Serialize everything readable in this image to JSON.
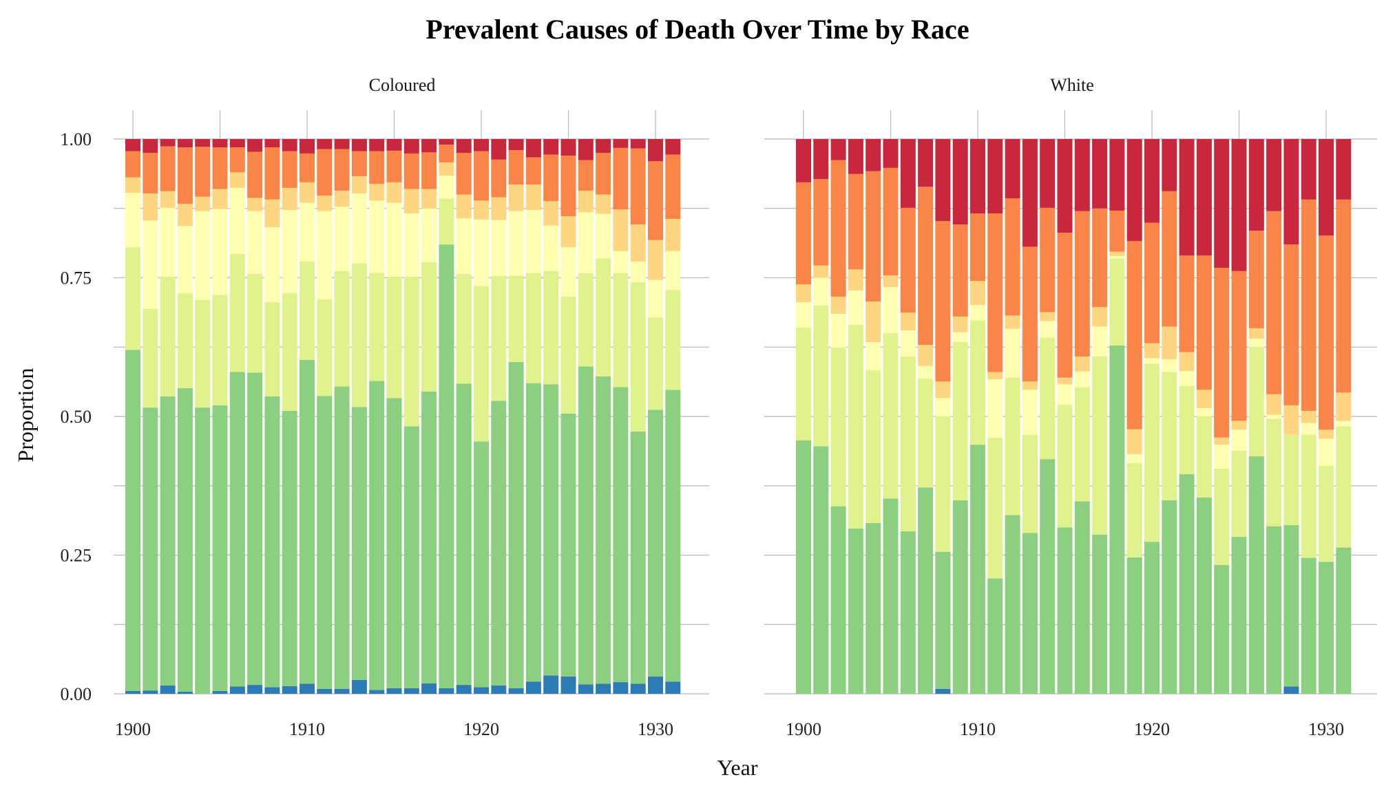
{
  "chart_data": {
    "type": "bar",
    "stacked": true,
    "title": "Prevalent Causes of Death Over Time by Race",
    "xlabel": "Year",
    "ylabel": "Proportion",
    "xlim": [
      1899.3,
      1932.5
    ],
    "ylim": [
      0,
      1
    ],
    "xticks": [
      "1900",
      "1910",
      "1920",
      "1930"
    ],
    "yticks": [
      "0.00",
      "0.25",
      "0.50",
      "0.75",
      "1.00"
    ],
    "grid": true,
    "legend": "none",
    "colors": [
      "#2c7bb6",
      "#8ccf80",
      "#dff28c",
      "#ffffb2",
      "#fed681",
      "#f98548",
      "#c9273d"
    ],
    "years": [
      1900,
      1901,
      1902,
      1903,
      1904,
      1905,
      1906,
      1907,
      1908,
      1909,
      1910,
      1911,
      1912,
      1913,
      1914,
      1915,
      1916,
      1917,
      1918,
      1919,
      1920,
      1921,
      1922,
      1923,
      1924,
      1925,
      1926,
      1927,
      1928,
      1929,
      1930,
      1931
    ],
    "panels": [
      {
        "label": "Coloured",
        "stacks": [
          [
            0.005,
            0.62,
            0.805,
            0.903,
            0.931,
            0.978,
            1.0
          ],
          [
            0.006,
            0.516,
            0.694,
            0.853,
            0.902,
            0.975,
            1.0
          ],
          [
            0.015,
            0.536,
            0.752,
            0.876,
            0.906,
            0.987,
            1.0
          ],
          [
            0.004,
            0.551,
            0.722,
            0.843,
            0.883,
            0.985,
            1.0
          ],
          [
            0.0,
            0.516,
            0.71,
            0.87,
            0.896,
            0.986,
            1.0
          ],
          [
            0.005,
            0.52,
            0.719,
            0.874,
            0.91,
            0.985,
            1.0
          ],
          [
            0.013,
            0.58,
            0.793,
            0.912,
            0.94,
            0.985,
            1.0
          ],
          [
            0.016,
            0.579,
            0.757,
            0.87,
            0.894,
            0.977,
            1.0
          ],
          [
            0.012,
            0.536,
            0.706,
            0.841,
            0.891,
            0.985,
            1.0
          ],
          [
            0.014,
            0.51,
            0.722,
            0.872,
            0.912,
            0.978,
            1.0
          ],
          [
            0.018,
            0.602,
            0.779,
            0.885,
            0.922,
            0.974,
            1.0
          ],
          [
            0.009,
            0.537,
            0.711,
            0.87,
            0.898,
            0.982,
            1.0
          ],
          [
            0.009,
            0.554,
            0.762,
            0.878,
            0.907,
            0.982,
            1.0
          ],
          [
            0.025,
            0.517,
            0.776,
            0.902,
            0.933,
            0.978,
            1.0
          ],
          [
            0.007,
            0.564,
            0.759,
            0.889,
            0.919,
            0.978,
            1.0
          ],
          [
            0.01,
            0.533,
            0.752,
            0.885,
            0.922,
            0.979,
            1.0
          ],
          [
            0.01,
            0.482,
            0.752,
            0.866,
            0.91,
            0.974,
            1.0
          ],
          [
            0.019,
            0.545,
            0.778,
            0.875,
            0.91,
            0.976,
            1.0
          ],
          [
            0.01,
            0.81,
            0.893,
            0.934,
            0.958,
            0.99,
            1.0
          ],
          [
            0.016,
            0.559,
            0.757,
            0.857,
            0.9,
            0.975,
            1.0
          ],
          [
            0.012,
            0.455,
            0.735,
            0.855,
            0.889,
            0.978,
            1.0
          ],
          [
            0.015,
            0.528,
            0.753,
            0.854,
            0.895,
            0.963,
            1.0
          ],
          [
            0.01,
            0.598,
            0.754,
            0.87,
            0.918,
            0.98,
            1.0
          ],
          [
            0.022,
            0.56,
            0.758,
            0.872,
            0.918,
            0.967,
            1.0
          ],
          [
            0.033,
            0.558,
            0.762,
            0.844,
            0.888,
            0.972,
            1.0
          ],
          [
            0.031,
            0.505,
            0.716,
            0.805,
            0.861,
            0.97,
            1.0
          ],
          [
            0.017,
            0.59,
            0.758,
            0.868,
            0.907,
            0.962,
            1.0
          ],
          [
            0.018,
            0.572,
            0.785,
            0.865,
            0.9,
            0.975,
            1.0
          ],
          [
            0.021,
            0.553,
            0.758,
            0.798,
            0.873,
            0.984,
            1.0
          ],
          [
            0.018,
            0.473,
            0.742,
            0.779,
            0.846,
            0.983,
            1.0
          ],
          [
            0.031,
            0.512,
            0.678,
            0.746,
            0.818,
            0.96,
            1.0
          ],
          [
            0.022,
            0.548,
            0.728,
            0.798,
            0.856,
            0.972,
            1.0
          ]
        ]
      },
      {
        "label": "White",
        "stacks": [
          [
            0.0,
            0.457,
            0.66,
            0.706,
            0.738,
            0.922,
            1.0
          ],
          [
            0.0,
            0.446,
            0.7,
            0.75,
            0.772,
            0.928,
            1.0
          ],
          [
            0.0,
            0.338,
            0.624,
            0.685,
            0.716,
            0.962,
            1.0
          ],
          [
            0.0,
            0.298,
            0.665,
            0.727,
            0.765,
            0.937,
            1.0
          ],
          [
            0.0,
            0.308,
            0.583,
            0.634,
            0.707,
            0.942,
            1.0
          ],
          [
            0.0,
            0.352,
            0.65,
            0.733,
            0.754,
            0.948,
            1.0
          ],
          [
            0.0,
            0.293,
            0.608,
            0.655,
            0.687,
            0.876,
            1.0
          ],
          [
            0.0,
            0.372,
            0.568,
            0.591,
            0.629,
            0.914,
            1.0
          ],
          [
            0.009,
            0.256,
            0.5,
            0.533,
            0.563,
            0.852,
            1.0
          ],
          [
            0.0,
            0.349,
            0.634,
            0.652,
            0.68,
            0.846,
            1.0
          ],
          [
            0.0,
            0.449,
            0.673,
            0.701,
            0.744,
            0.866,
            1.0
          ],
          [
            0.0,
            0.208,
            0.462,
            0.567,
            0.58,
            0.866,
            1.0
          ],
          [
            0.0,
            0.322,
            0.57,
            0.658,
            0.682,
            0.893,
            1.0
          ],
          [
            0.0,
            0.29,
            0.467,
            0.548,
            0.563,
            0.806,
            1.0
          ],
          [
            0.0,
            0.423,
            0.642,
            0.672,
            0.688,
            0.876,
            1.0
          ],
          [
            0.0,
            0.3,
            0.521,
            0.558,
            0.57,
            0.831,
            1.0
          ],
          [
            0.0,
            0.347,
            0.553,
            0.581,
            0.608,
            0.87,
            1.0
          ],
          [
            0.0,
            0.287,
            0.608,
            0.662,
            0.697,
            0.875,
            1.0
          ],
          [
            0.0,
            0.628,
            0.785,
            0.789,
            0.797,
            0.871,
            1.0
          ],
          [
            0.0,
            0.246,
            0.416,
            0.432,
            0.477,
            0.816,
            1.0
          ],
          [
            0.0,
            0.274,
            0.595,
            0.605,
            0.632,
            0.849,
            1.0
          ],
          [
            0.0,
            0.349,
            0.58,
            0.603,
            0.662,
            0.906,
            1.0
          ],
          [
            0.0,
            0.396,
            0.555,
            0.582,
            0.616,
            0.79,
            1.0
          ],
          [
            0.0,
            0.354,
            0.5,
            0.515,
            0.548,
            0.79,
            1.0
          ],
          [
            0.0,
            0.232,
            0.406,
            0.449,
            0.462,
            0.768,
            1.0
          ],
          [
            0.0,
            0.283,
            0.438,
            0.476,
            0.492,
            0.762,
            1.0
          ],
          [
            0.0,
            0.428,
            0.625,
            0.64,
            0.659,
            0.835,
            1.0
          ],
          [
            0.0,
            0.302,
            0.496,
            0.503,
            0.54,
            0.87,
            1.0
          ],
          [
            0.013,
            0.304,
            0.467,
            0.467,
            0.52,
            0.81,
            1.0
          ],
          [
            0.0,
            0.245,
            0.467,
            0.488,
            0.51,
            0.891,
            1.0
          ],
          [
            0.0,
            0.238,
            0.411,
            0.46,
            0.476,
            0.826,
            1.0
          ],
          [
            0.0,
            0.264,
            0.482,
            0.492,
            0.543,
            0.891,
            1.0
          ]
        ]
      }
    ]
  }
}
